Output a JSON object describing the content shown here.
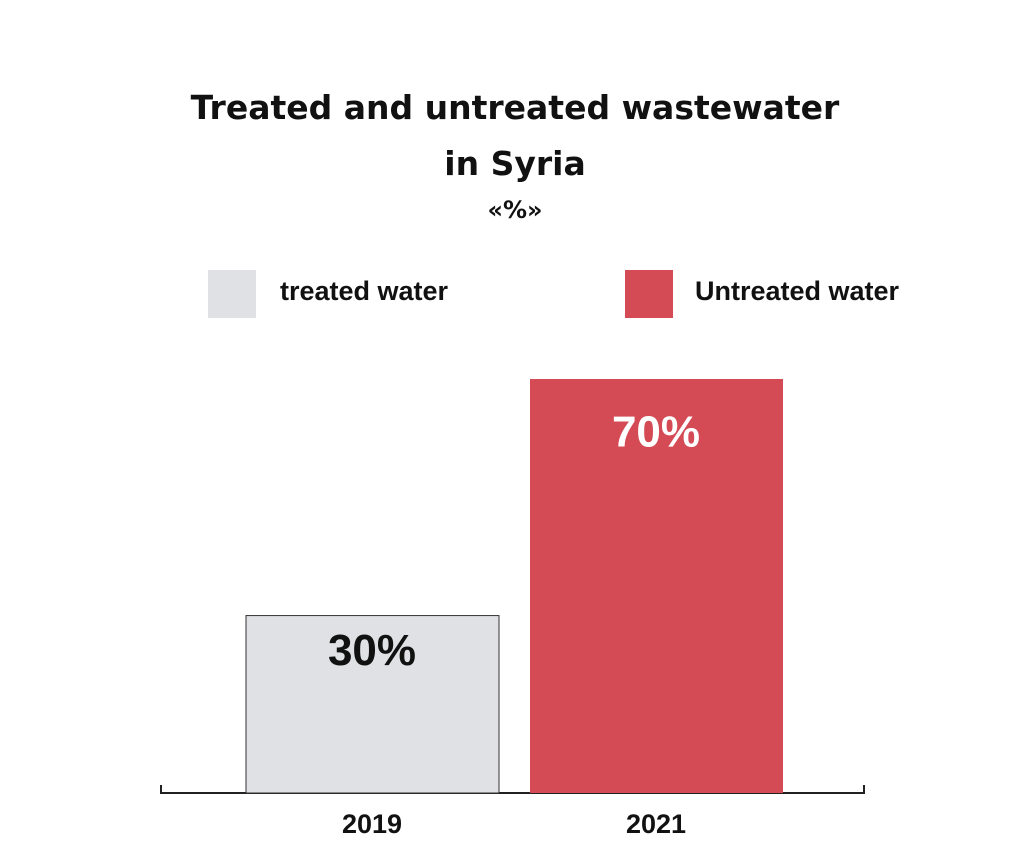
{
  "chart_data": {
    "type": "bar",
    "title": "Treated and untreated wastewater in Syria",
    "subtitle": "«%»",
    "categories": [
      "2019",
      "2021"
    ],
    "series": [
      {
        "name": "treated water",
        "color": "#e0e1e4",
        "values": [
          30,
          null
        ],
        "value_labels": [
          "30%",
          null
        ]
      },
      {
        "name": "Untreated water",
        "color": "#d44a55",
        "values": [
          null,
          70
        ],
        "value_labels": [
          null,
          "70%"
        ]
      }
    ]
  }
}
